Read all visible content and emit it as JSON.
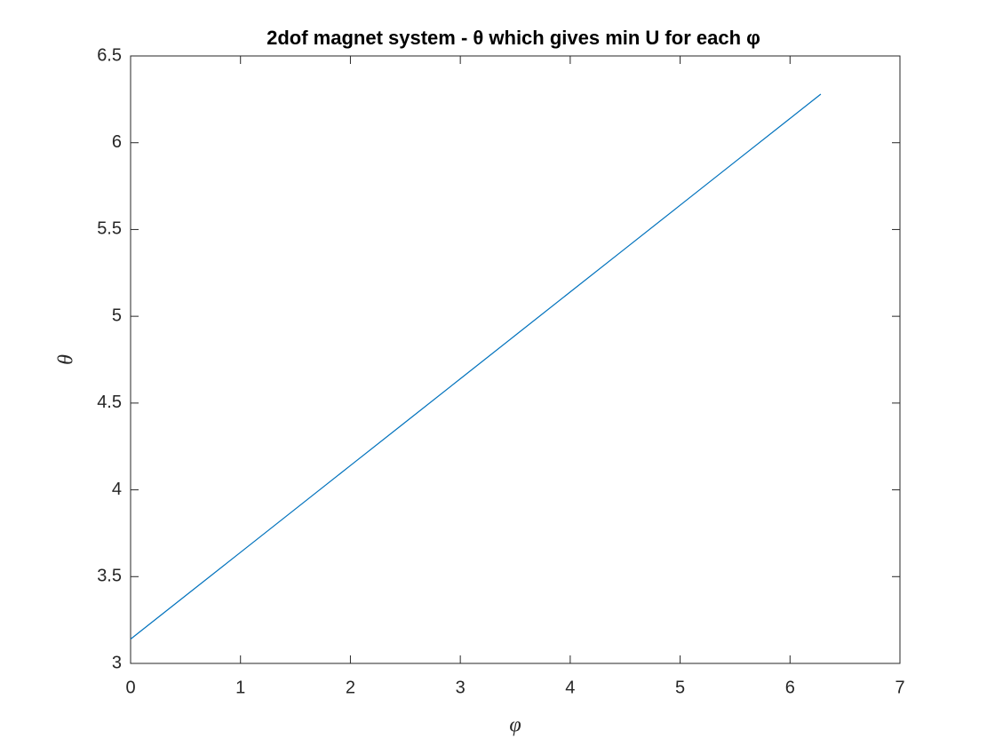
{
  "chart_data": {
    "type": "line",
    "title": "2dof magnet system - θ which gives min U for each φ",
    "x_label": "φ",
    "y_label": "θ",
    "x": [
      0,
      0.5,
      1,
      1.5,
      2,
      2.5,
      3,
      3.5,
      4,
      4.5,
      5,
      5.5,
      6,
      6.28
    ],
    "series": [
      {
        "name": "θ",
        "color": "#0072bd",
        "values": [
          3.14,
          3.39,
          3.64,
          3.89,
          4.14,
          4.39,
          4.64,
          4.89,
          5.14,
          5.39,
          5.64,
          5.89,
          6.14,
          6.28
        ]
      }
    ],
    "xlim": [
      0,
      7
    ],
    "xticks": [
      0,
      1,
      2,
      3,
      4,
      5,
      6,
      7
    ],
    "ylim": [
      3,
      6.5
    ],
    "yticks": [
      3,
      3.5,
      4,
      4.5,
      5,
      5.5,
      6,
      6.5
    ],
    "grid": false,
    "legend": false
  }
}
